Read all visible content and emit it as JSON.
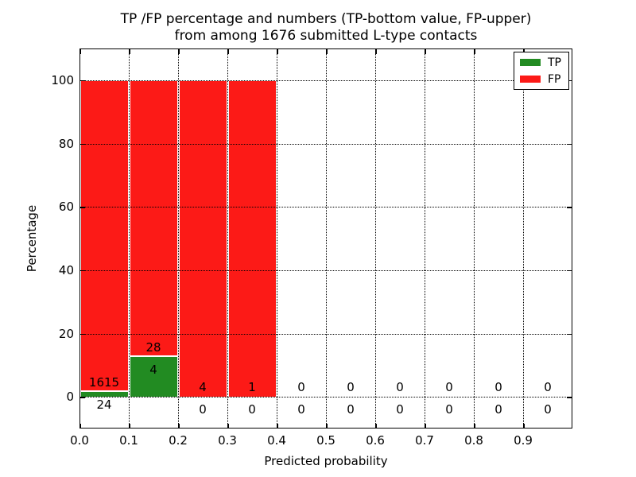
{
  "title": {
    "line1": "TP /FP percentage and numbers (TP-bottom value, FP-upper)",
    "line2": "from among 1676 submitted L-type contacts"
  },
  "axes": {
    "xlabel": "Predicted probability",
    "ylabel": "Percentage",
    "x_tick_labels": [
      "0.0",
      "0.1",
      "0.2",
      "0.3",
      "0.4",
      "0.5",
      "0.6",
      "0.7",
      "0.8",
      "0.9"
    ],
    "x_tick_values": [
      0.0,
      0.1,
      0.2,
      0.3,
      0.4,
      0.5,
      0.6,
      0.7,
      0.8,
      0.9
    ],
    "y_tick_labels": [
      "0",
      "20",
      "40",
      "60",
      "80",
      "100"
    ],
    "y_tick_values": [
      0,
      20,
      40,
      60,
      80,
      100
    ],
    "xlim": [
      0.0,
      1.0
    ],
    "ylim": [
      -10,
      110
    ],
    "grid_style": "dotted"
  },
  "legend": {
    "position": "upper right",
    "items": [
      {
        "label": "TP",
        "color": "#228b22"
      },
      {
        "label": "FP",
        "color": "#fc1a17"
      }
    ]
  },
  "colors": {
    "tp": "#228b22",
    "fp": "#fc1a17",
    "grid": "#000000",
    "text": "#000000",
    "background": "#ffffff"
  },
  "chart_data": {
    "type": "bar",
    "stacked": true,
    "normalization": "each bin scaled to 100 percent",
    "total_contacts": 1676,
    "bin_width": 0.1,
    "ylabel": "Percentage",
    "xlabel": "Predicted probability",
    "bins": [
      {
        "range": "0.0-0.1",
        "center": 0.05,
        "tp_count": 24,
        "fp_count": 1615,
        "tp_pct": 1.46,
        "fp_pct": 98.54,
        "tp_label": "24",
        "fp_label": "1615"
      },
      {
        "range": "0.1-0.2",
        "center": 0.15,
        "tp_count": 4,
        "fp_count": 28,
        "tp_pct": 12.5,
        "fp_pct": 87.5,
        "tp_label": "4",
        "fp_label": "28"
      },
      {
        "range": "0.2-0.3",
        "center": 0.25,
        "tp_count": 0,
        "fp_count": 4,
        "tp_pct": 0,
        "fp_pct": 100,
        "tp_label": "0",
        "fp_label": "4"
      },
      {
        "range": "0.3-0.4",
        "center": 0.35,
        "tp_count": 0,
        "fp_count": 1,
        "tp_pct": 0,
        "fp_pct": 100,
        "tp_label": "0",
        "fp_label": "1"
      },
      {
        "range": "0.4-0.5",
        "center": 0.45,
        "tp_count": 0,
        "fp_count": 0,
        "tp_pct": 0,
        "fp_pct": 0,
        "tp_label": "0",
        "fp_label": "0"
      },
      {
        "range": "0.5-0.6",
        "center": 0.55,
        "tp_count": 0,
        "fp_count": 0,
        "tp_pct": 0,
        "fp_pct": 0,
        "tp_label": "0",
        "fp_label": "0"
      },
      {
        "range": "0.6-0.7",
        "center": 0.65,
        "tp_count": 0,
        "fp_count": 0,
        "tp_pct": 0,
        "fp_pct": 0,
        "tp_label": "0",
        "fp_label": "0"
      },
      {
        "range": "0.7-0.8",
        "center": 0.75,
        "tp_count": 0,
        "fp_count": 0,
        "tp_pct": 0,
        "fp_pct": 0,
        "tp_label": "0",
        "fp_label": "0"
      },
      {
        "range": "0.8-0.9",
        "center": 0.85,
        "tp_count": 0,
        "fp_count": 0,
        "tp_pct": 0,
        "fp_pct": 0,
        "tp_label": "0",
        "fp_label": "0"
      },
      {
        "range": "0.9-1.0",
        "center": 0.95,
        "tp_count": 0,
        "fp_count": 0,
        "tp_pct": 0,
        "fp_pct": 0,
        "tp_label": "0",
        "fp_label": "0"
      }
    ],
    "series": [
      {
        "name": "TP",
        "counts": [
          24,
          4,
          0,
          0,
          0,
          0,
          0,
          0,
          0,
          0
        ]
      },
      {
        "name": "FP",
        "counts": [
          1615,
          28,
          4,
          1,
          0,
          0,
          0,
          0,
          0,
          0
        ]
      }
    ]
  }
}
